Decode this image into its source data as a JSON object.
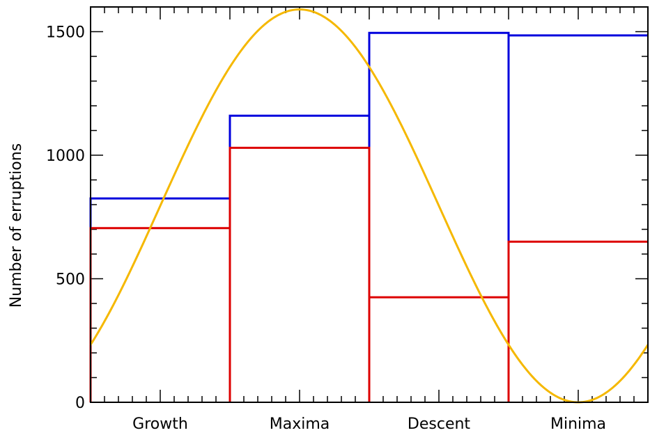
{
  "chart_data": {
    "type": "bar",
    "categories": [
      "Growth",
      "Maxima",
      "Descent",
      "Minima"
    ],
    "ylabel": "Number of erruptions",
    "ylim": [
      0,
      1600
    ],
    "yticks": [
      0,
      500,
      1000,
      1500
    ],
    "grid": false,
    "series": [
      {
        "values": [
          825,
          1160,
          1495,
          1485
        ],
        "color": "#0000dd",
        "style": "step"
      },
      {
        "values": [
          705,
          1030,
          425,
          650
        ],
        "color": "#dd0000",
        "style": "step"
      }
    ],
    "overlay": {
      "type": "line",
      "shape": "sine",
      "color": "#f5b800",
      "x_start": 0,
      "y_start": 230,
      "peak_value": 1590,
      "peak_x": 1.5,
      "trough_value": 0,
      "trough_x": 3.5
    }
  }
}
